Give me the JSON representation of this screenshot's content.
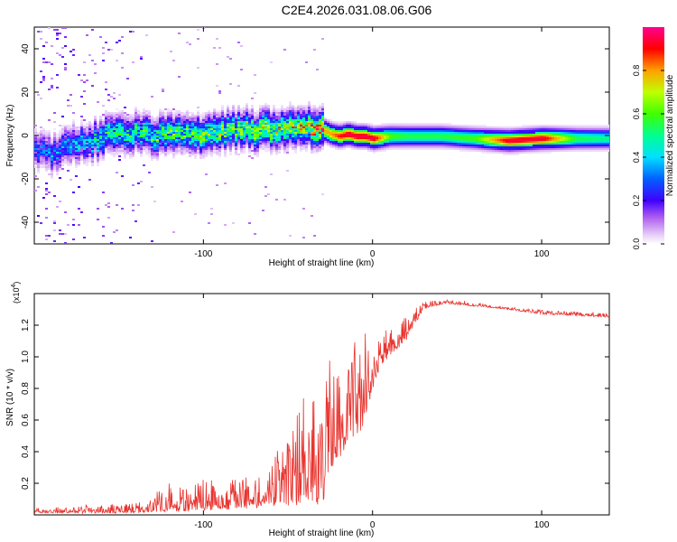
{
  "title": "C2E4.2026.031.08.06.G06",
  "chart_data": [
    {
      "type": "heatmap",
      "xlabel": "Height of straight line (km)",
      "ylabel": "Frequency (Hz)",
      "xlim": [
        -200,
        140
      ],
      "ylim": [
        -50,
        50
      ],
      "x_ticks": [
        -100,
        0,
        100
      ],
      "y_ticks": [
        -40,
        -20,
        0,
        20,
        40
      ],
      "colorbar": {
        "label": "Normalized spectral amplitude",
        "range": [
          0,
          1
        ],
        "ticks": [
          "0.0",
          "0.2",
          "0.4",
          "0.6",
          "0.8"
        ],
        "tick_values": [
          0.0,
          0.2,
          0.4,
          0.6,
          0.8
        ]
      },
      "ridge": {
        "description_values": "approximate ridge frequency (Hz) vs height (km)",
        "x": [
          -198,
          -190,
          -180,
          -170,
          -160,
          -150,
          -140,
          -130,
          -120,
          -110,
          -100,
          -90,
          -80,
          -70,
          -60,
          -50,
          -40,
          -35,
          -30,
          -25,
          -20,
          -15,
          -10,
          -5,
          0,
          10,
          20,
          40,
          60,
          80,
          100,
          120,
          138
        ],
        "y": [
          -6,
          -8,
          -3,
          -4,
          0,
          1,
          2,
          0,
          1,
          1,
          1,
          2,
          3,
          3,
          3,
          5,
          5,
          4,
          3,
          1,
          0,
          1,
          0,
          0,
          -1,
          0,
          0,
          0,
          -1,
          -2,
          -1,
          -1,
          -1
        ],
        "peak_amplitude": [
          0.25,
          0.3,
          0.3,
          0.35,
          0.45,
          0.45,
          0.45,
          0.5,
          0.5,
          0.5,
          0.55,
          0.55,
          0.55,
          0.6,
          0.6,
          0.6,
          0.65,
          0.75,
          0.8,
          0.8,
          0.9,
          0.95,
          0.95,
          0.95,
          0.95,
          0.6,
          0.55,
          0.55,
          0.6,
          0.95,
          0.95,
          0.55,
          0.5
        ]
      }
    },
    {
      "type": "line",
      "xlabel": "Height of straight line (km)",
      "ylabel": "SNR (10 * v/v)",
      "y_scale_label": "(x10",
      "y_scale_exponent": "4",
      "xlim": [
        -200,
        140
      ],
      "ylim": [
        0,
        1.4
      ],
      "x_ticks": [
        -100,
        0,
        100
      ],
      "y_ticks": [
        0.2,
        0.4,
        0.6,
        0.8,
        1.0,
        1.2
      ],
      "y_tick_labels": [
        "0.2",
        "0.4",
        "0.6",
        "0.8",
        "1.0",
        "1.2"
      ],
      "series": [
        {
          "name": "SNR",
          "color": "#e8342f",
          "envelope_x": [
            -200,
            -180,
            -160,
            -140,
            -130,
            -120,
            -110,
            -100,
            -90,
            -80,
            -70,
            -60,
            -50,
            -45,
            -40,
            -30,
            -25,
            -20,
            -15,
            -10,
            -5,
            0,
            5,
            10,
            20,
            30,
            40,
            50,
            60,
            80,
            100,
            120,
            140
          ],
          "envelope_low": [
            0.01,
            0.01,
            0.01,
            0.01,
            0.02,
            0.02,
            0.02,
            0.03,
            0.03,
            0.04,
            0.04,
            0.05,
            0.06,
            0.06,
            0.1,
            0.05,
            0.25,
            0.35,
            0.45,
            0.5,
            0.55,
            0.8,
            0.95,
            1.0,
            1.1,
            1.3,
            1.33,
            1.33,
            1.32,
            1.3,
            1.27,
            1.26,
            1.25
          ],
          "envelope_high": [
            0.05,
            0.06,
            0.07,
            0.08,
            0.12,
            0.25,
            0.2,
            0.25,
            0.2,
            0.3,
            0.25,
            0.35,
            0.55,
            0.7,
            1.0,
            0.75,
            1.15,
            1.0,
            1.05,
            1.15,
            1.25,
            1.05,
            1.2,
            1.25,
            1.3,
            1.35,
            1.37,
            1.36,
            1.35,
            1.32,
            1.3,
            1.29,
            1.28
          ]
        }
      ]
    }
  ]
}
